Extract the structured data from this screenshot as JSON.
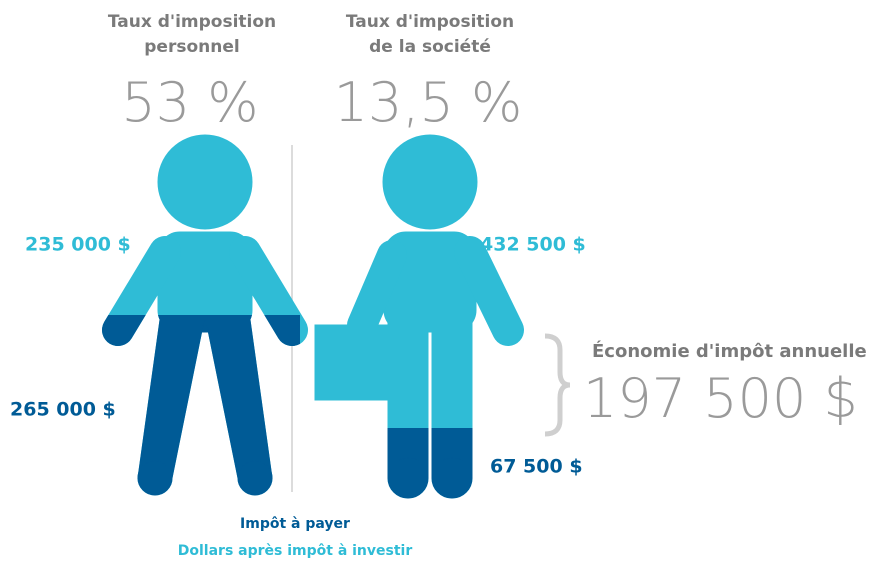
{
  "personal": {
    "title_lines": [
      "Taux d'imposition",
      "personnel"
    ],
    "rate": "53 %",
    "after_tax": "235 000 $",
    "tax": "265 000 $"
  },
  "corporate": {
    "title_lines": [
      "Taux d'imposition",
      "de la société"
    ],
    "rate": "13,5 %",
    "after_tax": "432 500 $",
    "tax": "67 500 $"
  },
  "savings": {
    "label": "Économie d'impôt annuelle",
    "amount": "197 500 $"
  },
  "legend": {
    "tax": "Impôt à payer",
    "after_tax": "Dollars après impôt à investir"
  }
}
